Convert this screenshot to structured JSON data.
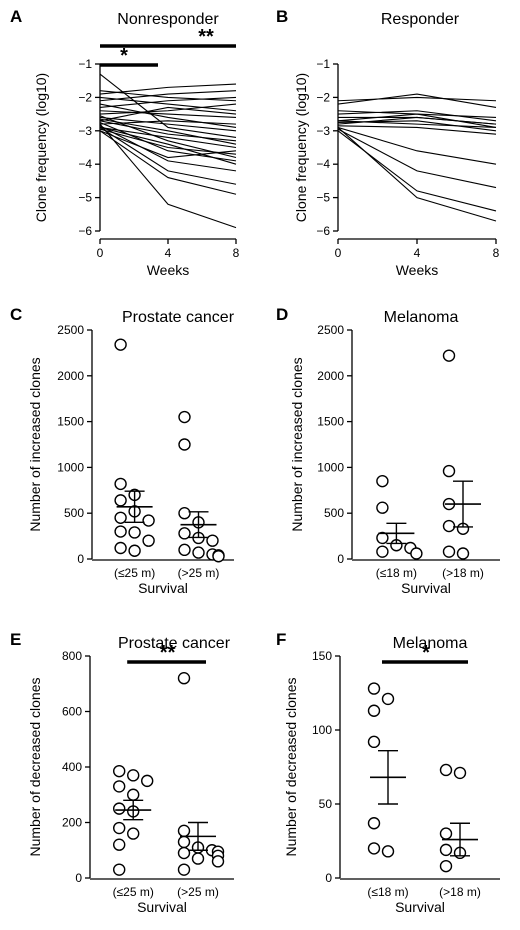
{
  "chart_data": [
    {
      "id": "A",
      "panel": "A",
      "type": "line",
      "title": "Nonresponder",
      "xlabel": "Weeks",
      "ylabel": "Clone frequency (log10)",
      "ylim": [
        -6,
        -1
      ],
      "xticks": [
        "0",
        "4",
        "8"
      ],
      "yticks": [
        "−1",
        "−2",
        "−3",
        "−4",
        "−5",
        "−6"
      ],
      "x": [
        0,
        4,
        8
      ],
      "series": [
        {
          "values": [
            -1.3,
            -2.9,
            -3.2
          ]
        },
        {
          "values": [
            -1.8,
            -2.0,
            -2.1
          ]
        },
        {
          "values": [
            -1.9,
            -1.7,
            -1.6
          ]
        },
        {
          "values": [
            -2.0,
            -2.2,
            -2.4
          ]
        },
        {
          "values": [
            -2.1,
            -1.9,
            -1.8
          ]
        },
        {
          "values": [
            -2.2,
            -2.6,
            -2.9
          ]
        },
        {
          "values": [
            -2.3,
            -2.1,
            -2.0
          ]
        },
        {
          "values": [
            -2.4,
            -2.5,
            -2.6
          ]
        },
        {
          "values": [
            -2.5,
            -2.4,
            -2.2
          ]
        },
        {
          "values": [
            -2.55,
            -3.3,
            -3.8
          ]
        },
        {
          "values": [
            -2.6,
            -2.8,
            -3.0
          ]
        },
        {
          "values": [
            -2.65,
            -3.0,
            -3.4
          ]
        },
        {
          "values": [
            -2.7,
            -2.3,
            -2.5
          ]
        },
        {
          "values": [
            -2.75,
            -3.6,
            -3.9
          ]
        },
        {
          "values": [
            -2.8,
            -2.7,
            -2.8
          ]
        },
        {
          "values": [
            -2.85,
            -3.9,
            -4.2
          ]
        },
        {
          "values": [
            -2.9,
            -3.2,
            -3.5
          ]
        },
        {
          "values": [
            -2.9,
            -4.2,
            -4.6
          ]
        },
        {
          "values": [
            -2.95,
            -3.5,
            -3.7
          ]
        },
        {
          "values": [
            -3.0,
            -3.8,
            -3.6
          ]
        },
        {
          "values": [
            -3.0,
            -4.4,
            -4.9
          ]
        },
        {
          "values": [
            -2.8,
            -5.2,
            -5.9
          ]
        },
        {
          "values": [
            -2.9,
            -3.4,
            -4.0
          ]
        },
        {
          "values": [
            -2.7,
            -3.1,
            -3.3
          ]
        }
      ],
      "significance": [
        {
          "label": "*",
          "from": 0,
          "to": 4
        },
        {
          "label": "**",
          "from": 0,
          "to": 8
        }
      ]
    },
    {
      "id": "B",
      "panel": "B",
      "type": "line",
      "title": "Responder",
      "xlabel": "Weeks",
      "ylabel": "Clone frequency (log10)",
      "ylim": [
        -6,
        -1
      ],
      "xticks": [
        "0",
        "4",
        "8"
      ],
      "yticks": [
        "−1",
        "−2",
        "−3",
        "−4",
        "−5",
        "−6"
      ],
      "x": [
        0,
        4,
        8
      ],
      "series": [
        {
          "values": [
            -2.1,
            -2.0,
            -2.1
          ]
        },
        {
          "values": [
            -2.2,
            -1.9,
            -2.3
          ]
        },
        {
          "values": [
            -2.4,
            -2.5,
            -2.6
          ]
        },
        {
          "values": [
            -2.5,
            -2.4,
            -2.7
          ]
        },
        {
          "values": [
            -2.6,
            -2.6,
            -2.8
          ]
        },
        {
          "values": [
            -2.7,
            -2.5,
            -2.9
          ]
        },
        {
          "values": [
            -2.75,
            -2.7,
            -3.0
          ]
        },
        {
          "values": [
            -2.8,
            -2.6,
            -2.8
          ]
        },
        {
          "values": [
            -2.85,
            -2.9,
            -3.1
          ]
        },
        {
          "values": [
            -2.9,
            -3.6,
            -4.0
          ]
        },
        {
          "values": [
            -2.95,
            -4.2,
            -4.7
          ]
        },
        {
          "values": [
            -3.0,
            -4.8,
            -5.4
          ]
        },
        {
          "values": [
            -2.9,
            -5.0,
            -5.7
          ]
        },
        {
          "values": [
            -2.7,
            -2.8,
            -2.9
          ]
        }
      ]
    },
    {
      "id": "C",
      "panel": "C",
      "type": "scatter",
      "title": "Prostate cancer",
      "xlabel": "Survival",
      "ylabel": "Number of increased clones",
      "ylim": [
        0,
        2500
      ],
      "categories": [
        "(≤25 m)",
        "(>25 m)"
      ],
      "yticks": [
        "0",
        "500",
        "1000",
        "1500",
        "2000",
        "2500"
      ],
      "groups": [
        {
          "points": [
            2340,
            820,
            700,
            640,
            520,
            450,
            300,
            290,
            200,
            120,
            90,
            420
          ],
          "mean": 570,
          "sem": 170
        },
        {
          "points": [
            1550,
            1250,
            500,
            280,
            230,
            200,
            100,
            70,
            50,
            40,
            30,
            400
          ],
          "mean": 375,
          "sem": 140
        }
      ]
    },
    {
      "id": "D",
      "panel": "D",
      "type": "scatter",
      "title": "Melanoma",
      "xlabel": "Survival",
      "ylabel": "Number of increased clones",
      "ylim": [
        0,
        2500
      ],
      "categories": [
        "(≤18 m)",
        "(>18 m)"
      ],
      "yticks": [
        "0",
        "500",
        "1000",
        "1500",
        "2000",
        "2500"
      ],
      "groups": [
        {
          "points": [
            850,
            560,
            230,
            150,
            120,
            80,
            60
          ],
          "mean": 280,
          "sem": 110
        },
        {
          "points": [
            2220,
            960,
            600,
            360,
            330,
            80,
            60
          ],
          "mean": 600,
          "sem": 250
        }
      ]
    },
    {
      "id": "E",
      "panel": "E",
      "type": "scatter",
      "title": "Prostate cancer",
      "xlabel": "Survival",
      "ylabel": "Number of decreased clones",
      "ylim": [
        0,
        800
      ],
      "categories": [
        "(≤25 m)",
        "(>25 m)"
      ],
      "yticks": [
        "0",
        "200",
        "400",
        "600",
        "800"
      ],
      "groups": [
        {
          "points": [
            385,
            370,
            350,
            330,
            300,
            250,
            240,
            180,
            160,
            120,
            30
          ],
          "mean": 245,
          "sem": 35
        },
        {
          "points": [
            720,
            170,
            130,
            110,
            100,
            95,
            90,
            80,
            70,
            60,
            30
          ],
          "mean": 150,
          "sem": 50
        }
      ],
      "significance": [
        {
          "label": "**"
        }
      ]
    },
    {
      "id": "F",
      "panel": "F",
      "type": "scatter",
      "title": "Melanoma",
      "xlabel": "Survival",
      "ylabel": "Number of decreased clones",
      "ylim": [
        0,
        150
      ],
      "categories": [
        "(≤18 m)",
        "(>18 m)"
      ],
      "yticks": [
        "0",
        "50",
        "100",
        "150"
      ],
      "groups": [
        {
          "points": [
            128,
            121,
            113,
            92,
            37,
            20,
            18
          ],
          "mean": 68,
          "sem": 18
        },
        {
          "points": [
            73,
            71,
            30,
            19,
            17,
            8
          ],
          "mean": 26,
          "sem": 11
        }
      ],
      "significance": [
        {
          "label": "*"
        }
      ]
    }
  ]
}
